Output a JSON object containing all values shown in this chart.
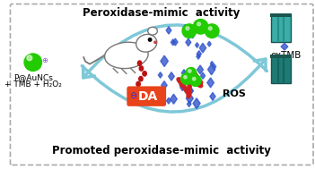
{
  "title_top": "Peroxidase-mimic  activity",
  "title_bottom": "Promoted peroxidase-mimic  activity",
  "label_reagents_line1": "P@AuNCs",
  "label_reagents_line2": "+ TMB + H₂O₂",
  "label_oxtmb": "oxTMB",
  "label_da": "DA",
  "label_ros": "ROS",
  "bg_color": "#ffffff",
  "border_color": "#aaaaaa",
  "title_fontsize": 8.5,
  "label_fontsize": 7.5,
  "arrow_color": "#7ec8d8",
  "da_box_color": "#e8431a",
  "da_text_color": "#ffffff",
  "green_ball_color": "#22cc00",
  "blue_scatter_color": "#3355cc",
  "cuvette_color1": "#3aada8",
  "cuvette_color2": "#2d8f8a"
}
